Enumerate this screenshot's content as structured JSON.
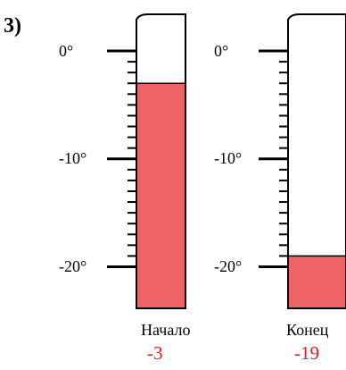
{
  "problem_number": "3)",
  "colors": {
    "liquid": "#ee6363",
    "outline": "#000000",
    "reading_text": "#e8181d"
  },
  "thermometers": [
    {
      "caption": "Начало",
      "reading": "-3",
      "value": -3,
      "scale_labels": [
        "0°",
        "-10°",
        "-20°"
      ],
      "scale_min": -20,
      "scale_max": 0,
      "major_tick_every": 10,
      "minor_tick_every": 1
    },
    {
      "caption": "Конец",
      "reading": "-19",
      "value": -19,
      "scale_labels": [
        "0°",
        "-10°",
        "-20°"
      ],
      "scale_min": -20,
      "scale_max": 0,
      "major_tick_every": 10,
      "minor_tick_every": 1
    }
  ]
}
